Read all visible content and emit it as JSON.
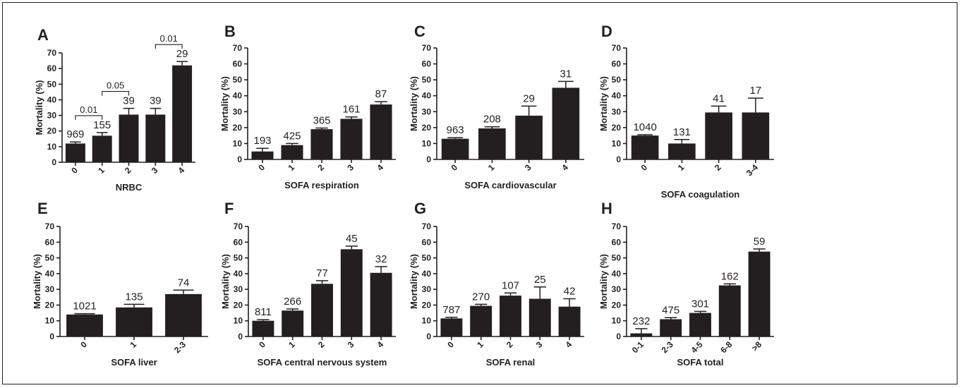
{
  "chart_data": [
    {
      "panel": "A",
      "type": "bar",
      "xlabel": "NRBC",
      "ylabel": "Mortality (%)",
      "ylim": [
        0,
        70
      ],
      "yticks": [
        0,
        10,
        20,
        30,
        40,
        50,
        60,
        70
      ],
      "categories": [
        "0",
        "1",
        "2",
        "3",
        "4"
      ],
      "values": [
        12,
        17,
        30.5,
        30.5,
        62
      ],
      "errors": [
        1,
        2,
        4,
        4,
        2.5
      ],
      "labels": [
        "969",
        "155",
        "39",
        "39",
        "29"
      ],
      "annotations": [
        {
          "from": 0,
          "to": 1,
          "text": "0.01"
        },
        {
          "from": 1,
          "to": 2,
          "text": "0.05"
        },
        {
          "from": 3,
          "to": 4,
          "text": "0.01"
        }
      ]
    },
    {
      "panel": "B",
      "type": "bar",
      "xlabel": "SOFA respiration",
      "ylabel": "Mortality (%)",
      "ylim": [
        0,
        70
      ],
      "yticks": [
        0,
        10,
        20,
        30,
        40,
        50,
        60,
        70
      ],
      "categories": [
        "0",
        "1",
        "2",
        "3",
        "4"
      ],
      "values": [
        5,
        9,
        19,
        25.5,
        34.5
      ],
      "errors": [
        2,
        1,
        0.7,
        1.2,
        1.8
      ],
      "labels": [
        "193",
        "425",
        "365",
        "161",
        "87"
      ]
    },
    {
      "panel": "C",
      "type": "bar",
      "xlabel": "SOFA cardiovascular",
      "ylabel": "Mortality (%)",
      "ylim": [
        0,
        70
      ],
      "yticks": [
        0,
        10,
        20,
        30,
        40,
        50,
        60,
        70
      ],
      "categories": [
        "0",
        "1",
        "3",
        "4"
      ],
      "values": [
        13,
        19.5,
        27.5,
        45
      ],
      "errors": [
        0.7,
        1,
        6,
        4
      ],
      "labels": [
        "963",
        "208",
        "29",
        "31"
      ]
    },
    {
      "panel": "D",
      "type": "bar",
      "xlabel": "SOFA coagulation",
      "ylabel": "Mortality (%)",
      "ylim": [
        0,
        70
      ],
      "yticks": [
        0,
        10,
        20,
        30,
        40,
        50,
        60,
        70
      ],
      "categories": [
        "0",
        "1",
        "2",
        "3-4"
      ],
      "values": [
        15,
        10,
        29.5,
        29.5
      ],
      "errors": [
        0.5,
        2.5,
        4,
        9
      ],
      "labels": [
        "1040",
        "131",
        "41",
        "17"
      ]
    },
    {
      "panel": "E",
      "type": "bar",
      "xlabel": "SOFA liver",
      "ylabel": "Mortality (%)",
      "ylim": [
        0,
        70
      ],
      "yticks": [
        0,
        10,
        20,
        30,
        40,
        50,
        60,
        70
      ],
      "categories": [
        "0",
        "1",
        "2-3"
      ],
      "values": [
        14,
        18.5,
        27
      ],
      "errors": [
        0.5,
        2,
        2.5
      ],
      "labels": [
        "1021",
        "135",
        "74"
      ]
    },
    {
      "panel": "F",
      "type": "bar",
      "xlabel": "SOFA central nervous system",
      "ylabel": "Mortality (%)",
      "ylim": [
        0,
        70
      ],
      "yticks": [
        0,
        10,
        20,
        30,
        40,
        50,
        60,
        70
      ],
      "categories": [
        "0",
        "1",
        "2",
        "3",
        "4"
      ],
      "values": [
        10,
        16.5,
        33.5,
        55.5,
        40.5
      ],
      "errors": [
        0.7,
        1,
        2,
        2,
        4
      ],
      "labels": [
        "811",
        "266",
        "77",
        "45",
        "32"
      ]
    },
    {
      "panel": "G",
      "type": "bar",
      "xlabel": "SOFA renal",
      "ylabel": "Mortality (%)",
      "ylim": [
        0,
        70
      ],
      "yticks": [
        0,
        10,
        20,
        30,
        40,
        50,
        60,
        70
      ],
      "categories": [
        "0",
        "1",
        "2",
        "3",
        "4"
      ],
      "values": [
        11.5,
        19.5,
        26,
        24,
        19
      ],
      "errors": [
        0.7,
        1,
        1.7,
        7.5,
        5
      ],
      "labels": [
        "787",
        "270",
        "107",
        "25",
        "42"
      ]
    },
    {
      "panel": "H",
      "type": "bar",
      "xlabel": "SOFA total",
      "ylabel": "Mortality (%)",
      "ylim": [
        0,
        70
      ],
      "yticks": [
        0,
        10,
        20,
        30,
        40,
        50,
        60,
        70
      ],
      "categories": [
        "0-1",
        "2-3",
        "4-5",
        "6-8",
        ">8"
      ],
      "values": [
        2,
        11,
        15,
        32.5,
        54
      ],
      "errors": [
        3,
        1,
        1,
        1,
        1.7
      ],
      "labels": [
        "232",
        "475",
        "301",
        "162",
        "59"
      ]
    }
  ]
}
